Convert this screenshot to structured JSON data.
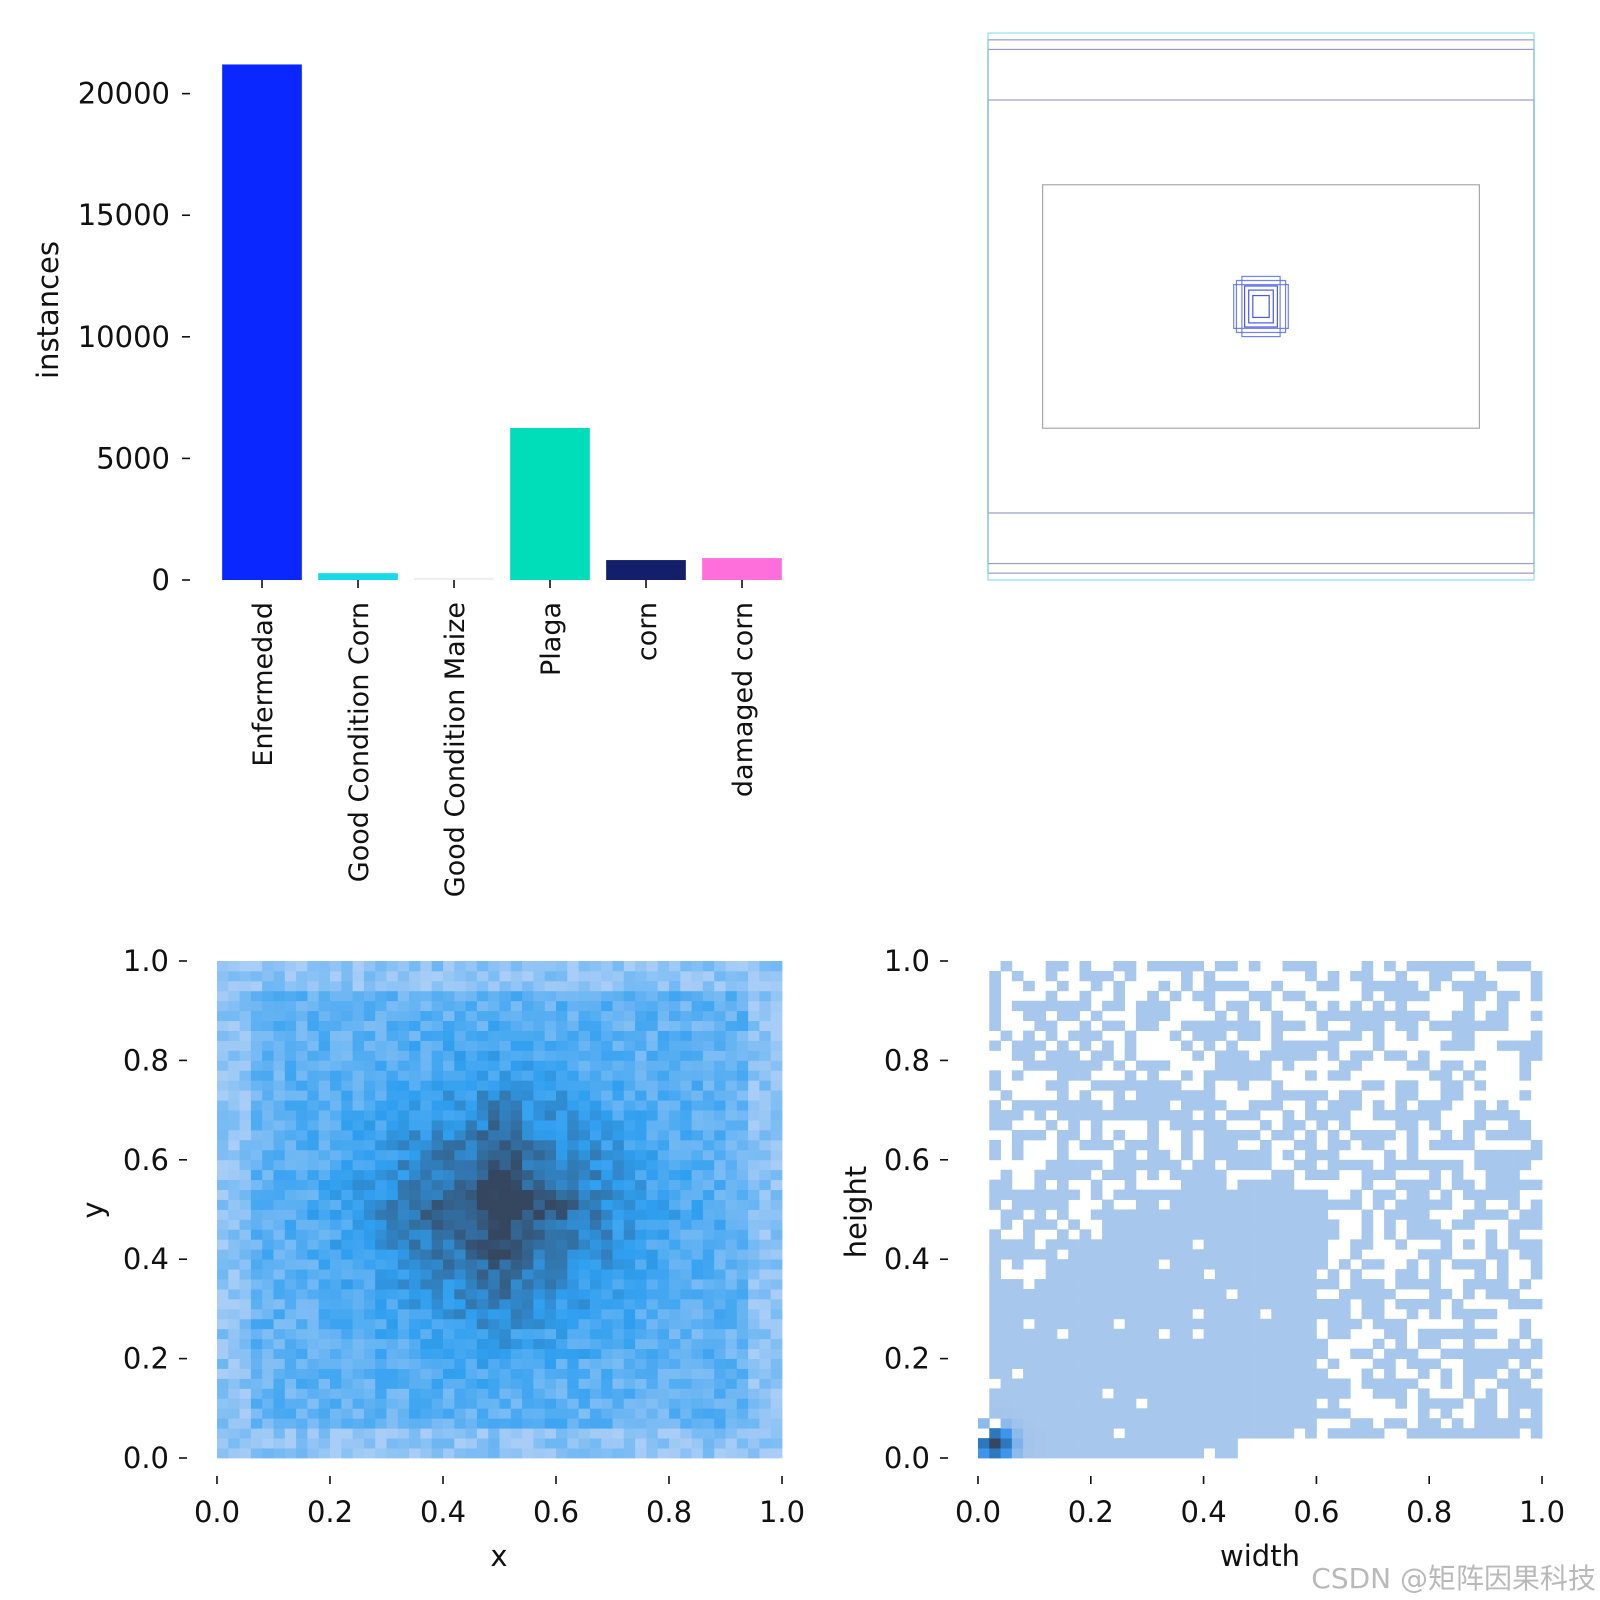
{
  "chart_data": [
    {
      "type": "bar",
      "categories": [
        "Enfermedad",
        "Good Condition Corn",
        "Good Condition Maize",
        "Plaga",
        "corn",
        "damaged corn"
      ],
      "values": [
        21200,
        280,
        90,
        6250,
        820,
        900
      ],
      "colors": [
        "#0a27ff",
        "#17d9e8",
        "#eeeeee",
        "#00ddb9",
        "#141f6b",
        "#ff6fdc"
      ],
      "ylabel": "instances",
      "xlabel": "",
      "ylim": [
        0,
        22000
      ],
      "yticks": [
        0,
        5000,
        10000,
        15000,
        20000
      ],
      "grid": false
    },
    {
      "type": "other",
      "description_kind": "box-overlay",
      "boxes": [
        {
          "cx": 0.5,
          "cy": 0.5,
          "w": 1.0,
          "h": 0.975,
          "color": "#8a8ab8"
        },
        {
          "cx": 0.5,
          "cy": 0.5,
          "w": 1.0,
          "h": 0.94,
          "color": "#8a8ab8"
        },
        {
          "cx": 0.5,
          "cy": 0.5,
          "w": 1.0,
          "h": 0.755,
          "color": "#8a8ab8"
        },
        {
          "cx": 0.5,
          "cy": 0.5,
          "w": 1.0,
          "h": 1.0,
          "color": "#7fd8e6"
        },
        {
          "cx": 0.5,
          "cy": 0.5,
          "w": 0.8,
          "h": 0.445,
          "color": "#999999"
        },
        {
          "cx": 0.5,
          "cy": 0.5,
          "w": 0.09,
          "h": 0.095,
          "color": "#5a6cf0"
        },
        {
          "cx": 0.5,
          "cy": 0.5,
          "w": 0.1,
          "h": 0.08,
          "color": "#5a6cf0"
        },
        {
          "cx": 0.5,
          "cy": 0.5,
          "w": 0.07,
          "h": 0.11,
          "color": "#5a6cf0"
        },
        {
          "cx": 0.5,
          "cy": 0.5,
          "w": 0.06,
          "h": 0.075,
          "color": "#2a3be0"
        },
        {
          "cx": 0.5,
          "cy": 0.5,
          "w": 0.045,
          "h": 0.06,
          "color": "#2a3be0"
        },
        {
          "cx": 0.5,
          "cy": 0.5,
          "w": 0.03,
          "h": 0.04,
          "color": "#2a3be0"
        }
      ]
    },
    {
      "type": "heatmap",
      "xlabel": "x",
      "ylabel": "y",
      "xlim": [
        0,
        1
      ],
      "ylim": [
        0,
        1
      ],
      "xticks": [
        "0.0",
        "0.2",
        "0.4",
        "0.6",
        "0.8",
        "1.0"
      ],
      "yticks": [
        "0.0",
        "0.2",
        "0.4",
        "0.6",
        "0.8",
        "1.0"
      ],
      "bins": 50,
      "colormap": {
        "low": "#a8cdf6",
        "mid": "#2f9ff0",
        "high": "#35465f"
      },
      "peak": {
        "x": 0.5,
        "y": 0.5
      }
    },
    {
      "type": "heatmap",
      "xlabel": "width",
      "ylabel": "height",
      "xlim": [
        0,
        1
      ],
      "ylim": [
        0,
        1
      ],
      "xticks": [
        "0.0",
        "0.2",
        "0.4",
        "0.6",
        "0.8",
        "1.0"
      ],
      "yticks": [
        "0.0",
        "0.2",
        "0.4",
        "0.6",
        "0.8",
        "1.0"
      ],
      "bins": 50,
      "colormap": {
        "low": "#adc9ec",
        "mid": "#2a8ce8",
        "high": "#35465f"
      },
      "peak": {
        "x": 0.03,
        "y": 0.03
      }
    }
  ],
  "watermark": "CSDN @矩阵因果科技"
}
